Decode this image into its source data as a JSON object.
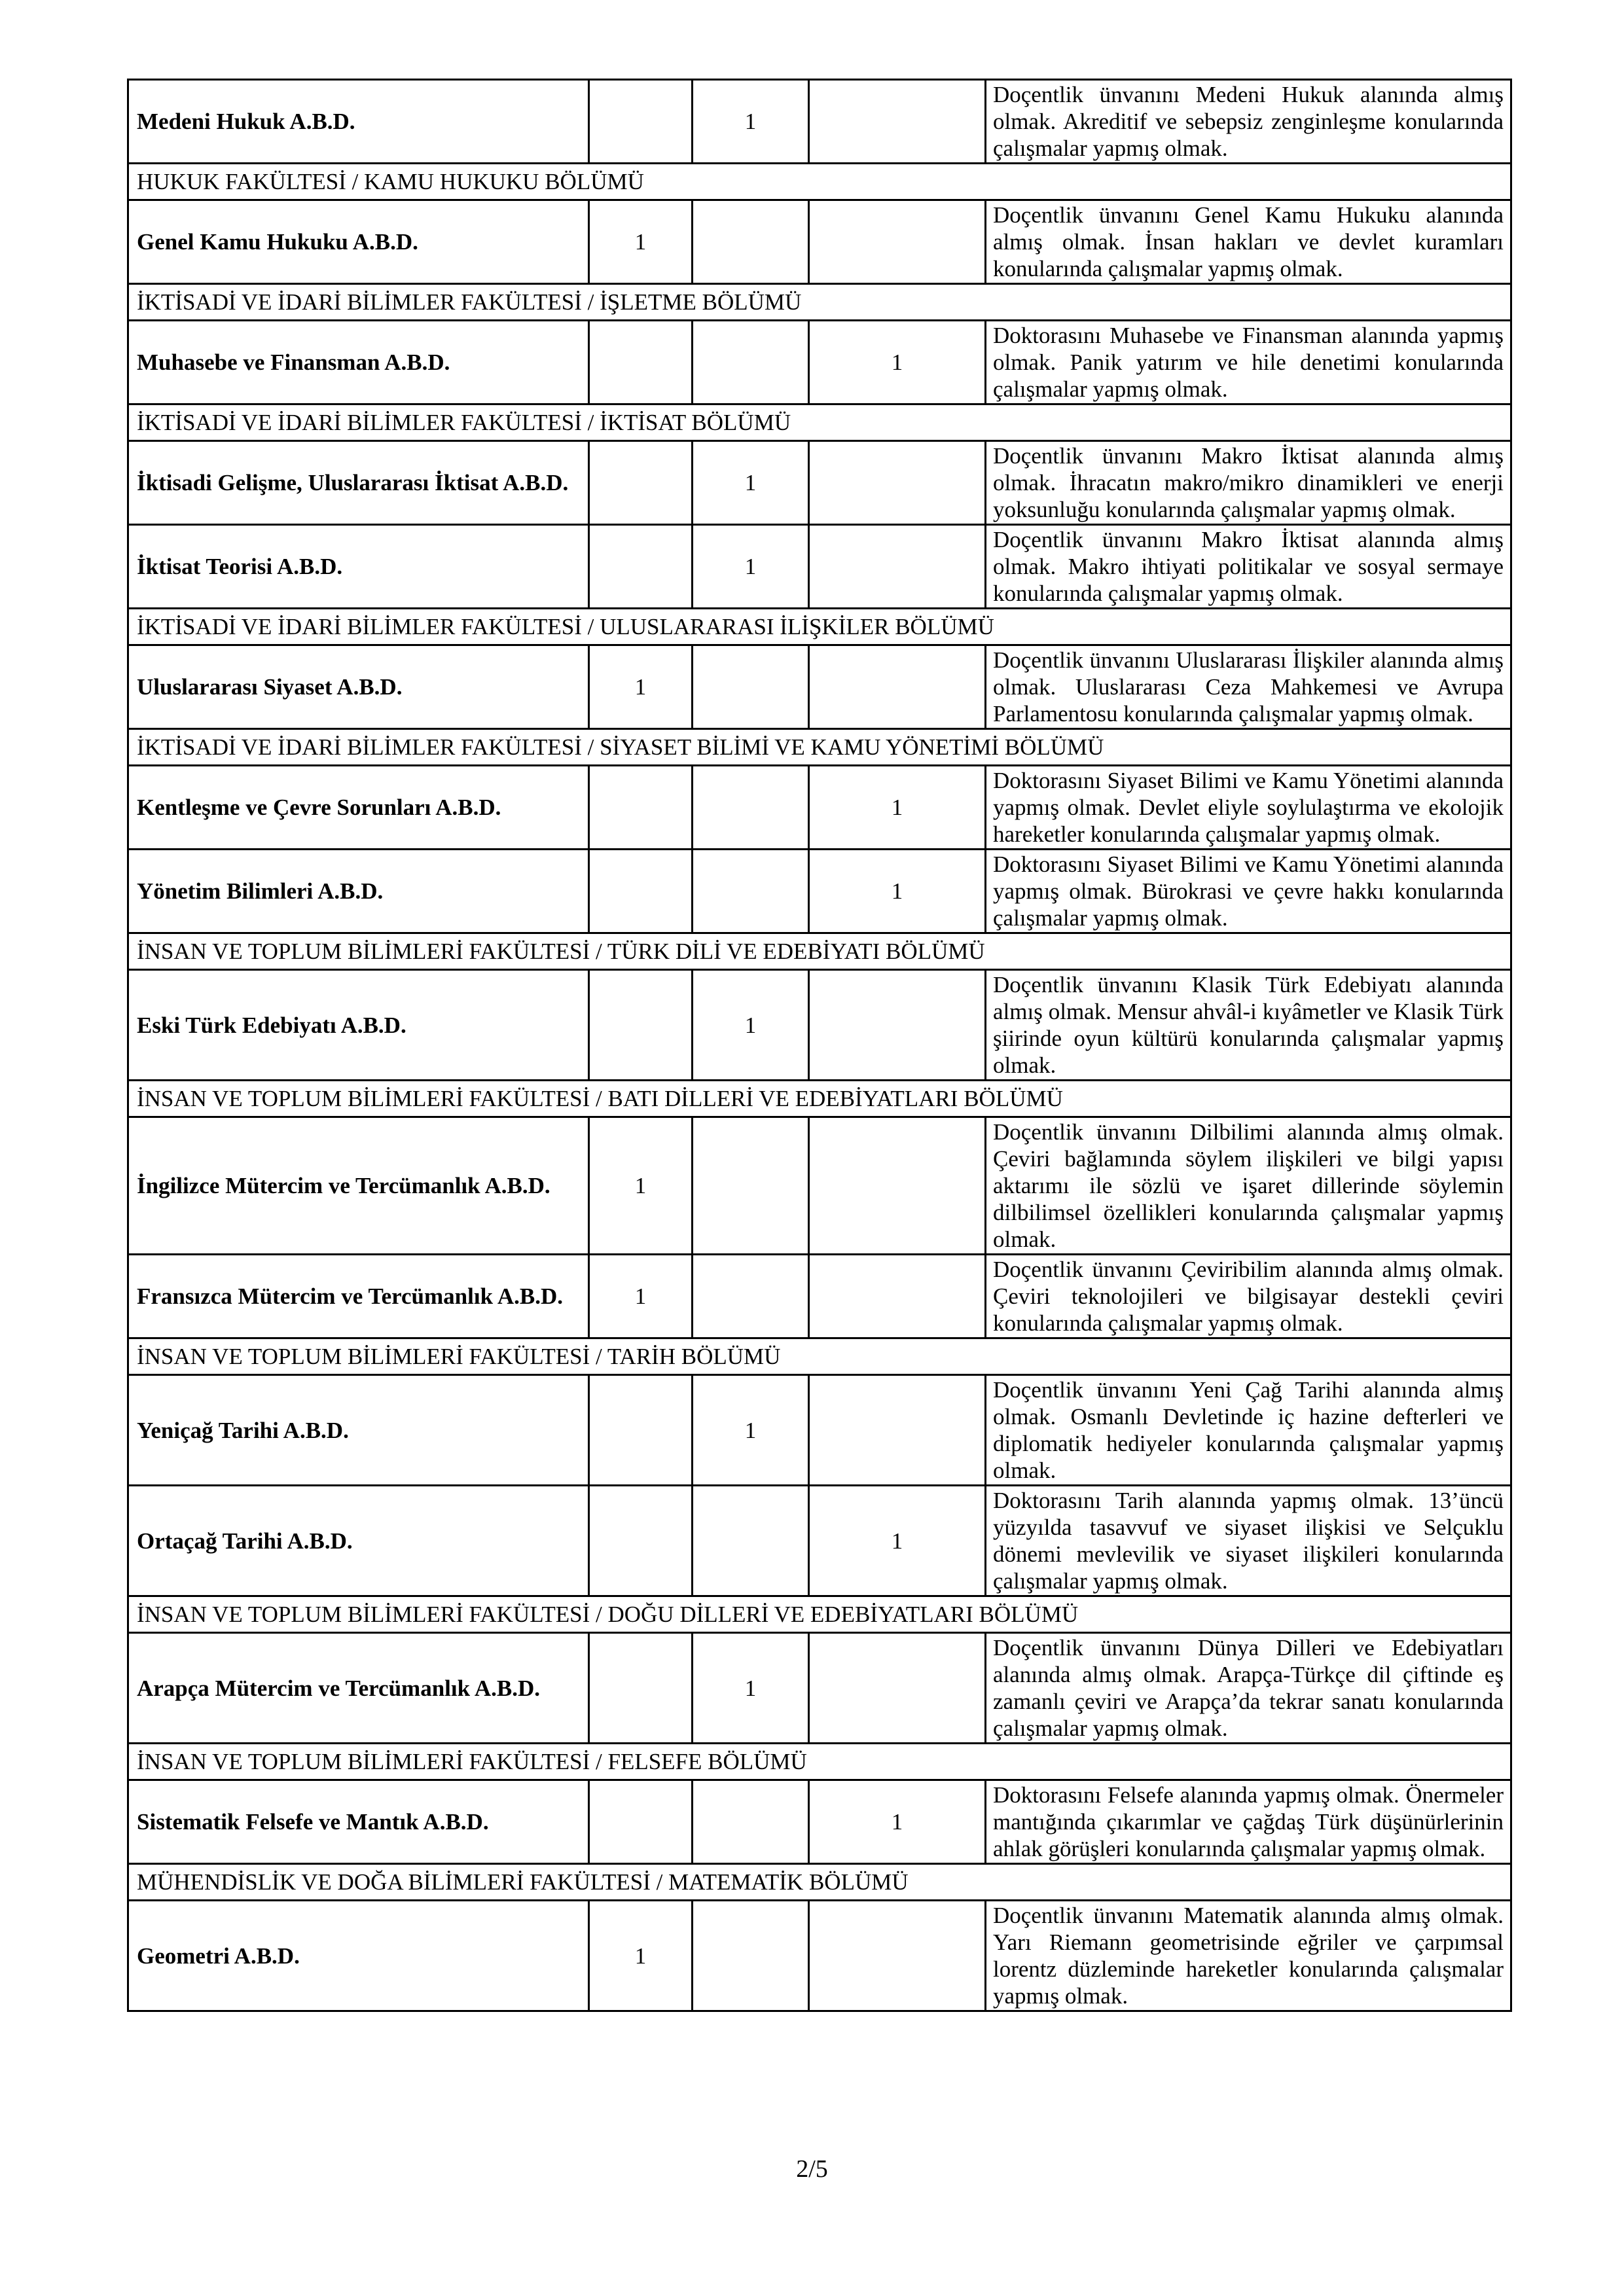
{
  "rows": [
    {
      "type": "data",
      "name": "Medeni Hukuk A.B.D.",
      "col": 2,
      "count": "1",
      "desc": "Doçentlik ünvanını Medeni Hukuk alanında almış olmak. Akreditif ve sebepsiz zenginleşme konularında çalışmalar yapmış olmak."
    },
    {
      "type": "section",
      "label": "HUKUK FAKÜLTESİ / KAMU HUKUKU BÖLÜMÜ"
    },
    {
      "type": "data",
      "name": "Genel Kamu Hukuku A.B.D.",
      "col": 1,
      "count": "1",
      "desc": "Doçentlik ünvanını Genel Kamu Hukuku alanında almış olmak. İnsan hakları ve devlet kuramları konularında çalışmalar yapmış olmak."
    },
    {
      "type": "section",
      "label": "İKTİSADİ VE İDARİ BİLİMLER FAKÜLTESİ / İŞLETME BÖLÜMÜ"
    },
    {
      "type": "data",
      "name": "Muhasebe ve Finansman A.B.D.",
      "col": 3,
      "count": "1",
      "desc": "Doktorasını Muhasebe ve Finansman alanında yapmış olmak. Panik yatırım ve hile denetimi konularında çalışmalar yapmış olmak."
    },
    {
      "type": "section",
      "label": "İKTİSADİ VE İDARİ BİLİMLER FAKÜLTESİ / İKTİSAT BÖLÜMÜ"
    },
    {
      "type": "data",
      "name": "İktisadi Gelişme, Uluslararası İktisat A.B.D.",
      "col": 2,
      "count": "1",
      "desc": "Doçentlik ünvanını Makro İktisat alanında almış olmak. İhracatın makro/mikro dinamikleri ve enerji yoksunluğu konularında çalışmalar yapmış olmak."
    },
    {
      "type": "data",
      "name": "İktisat Teorisi A.B.D.",
      "col": 2,
      "count": "1",
      "desc": "Doçentlik ünvanını Makro İktisat alanında almış olmak. Makro ihtiyati politikalar ve sosyal sermaye konularında çalışmalar yapmış olmak."
    },
    {
      "type": "section",
      "label": "İKTİSADİ VE İDARİ BİLİMLER FAKÜLTESİ / ULUSLARARASI İLİŞKİLER BÖLÜMÜ"
    },
    {
      "type": "data",
      "name": "Uluslararası Siyaset A.B.D.",
      "col": 1,
      "count": "1",
      "desc": "Doçentlik ünvanını Uluslararası İlişkiler alanında almış olmak. Uluslararası Ceza Mahkemesi ve Avrupa Parlamentosu konularında çalışmalar yapmış olmak."
    },
    {
      "type": "section",
      "label": "İKTİSADİ VE İDARİ BİLİMLER FAKÜLTESİ / SİYASET BİLİMİ VE KAMU YÖNETİMİ BÖLÜMÜ"
    },
    {
      "type": "data",
      "name": "Kentleşme ve Çevre Sorunları A.B.D.",
      "col": 3,
      "count": "1",
      "desc": "Doktorasını Siyaset Bilimi ve Kamu Yönetimi alanında yapmış olmak. Devlet eliyle soylulaştırma ve ekolojik hareketler konularında çalışmalar yapmış olmak."
    },
    {
      "type": "data",
      "name": "Yönetim Bilimleri A.B.D.",
      "col": 3,
      "count": "1",
      "desc": "Doktorasını Siyaset Bilimi ve Kamu Yönetimi alanında yapmış olmak. Bürokrasi ve çevre hakkı konularında çalışmalar yapmış olmak."
    },
    {
      "type": "section",
      "label": "İNSAN VE TOPLUM BİLİMLERİ FAKÜLTESİ / TÜRK DİLİ VE EDEBİYATI BÖLÜMÜ"
    },
    {
      "type": "data",
      "name": "Eski Türk Edebiyatı A.B.D.",
      "col": 2,
      "count": "1",
      "desc": "Doçentlik ünvanını Klasik Türk Edebiyatı alanında almış olmak. Mensur ahvâl-i kıyâmetler ve Klasik Türk şiirinde oyun kültürü konularında çalışmalar yapmış olmak."
    },
    {
      "type": "section",
      "label": "İNSAN VE TOPLUM BİLİMLERİ FAKÜLTESİ / BATI DİLLERİ VE EDEBİYATLARI BÖLÜMÜ"
    },
    {
      "type": "data",
      "name": "İngilizce Mütercim ve Tercümanlık A.B.D.",
      "col": 1,
      "count": "1",
      "desc": "Doçentlik ünvanını Dilbilimi alanında almış olmak. Çeviri bağlamında söylem ilişkileri ve bilgi yapısı aktarımı ile sözlü ve işaret dillerinde söylemin dilbilimsel özellikleri konularında çalışmalar yapmış olmak."
    },
    {
      "type": "data",
      "name": "Fransızca Mütercim ve Tercümanlık A.B.D.",
      "col": 1,
      "count": "1",
      "desc": "Doçentlik ünvanını Çeviribilim alanında almış olmak. Çeviri teknolojileri ve bilgisayar destekli çeviri konularında çalışmalar yapmış olmak."
    },
    {
      "type": "section",
      "label": "İNSAN VE TOPLUM BİLİMLERİ FAKÜLTESİ / TARİH BÖLÜMÜ"
    },
    {
      "type": "data",
      "name": "Yeniçağ Tarihi A.B.D.",
      "col": 2,
      "count": "1",
      "desc": "Doçentlik ünvanını Yeni Çağ Tarihi alanında almış olmak. Osmanlı Devletinde iç hazine defterleri ve diplomatik hediyeler konularında çalışmalar yapmış olmak."
    },
    {
      "type": "data",
      "name": "Ortaçağ Tarihi A.B.D.",
      "col": 3,
      "count": "1",
      "desc": "Doktorasını Tarih alanında yapmış olmak. 13’üncü yüzyılda tasavvuf ve siyaset ilişkisi ve Selçuklu dönemi mevlevilik ve siyaset ilişkileri konularında çalışmalar yapmış olmak."
    },
    {
      "type": "section",
      "label": "İNSAN VE TOPLUM BİLİMLERİ FAKÜLTESİ / DOĞU DİLLERİ VE EDEBİYATLARI BÖLÜMÜ"
    },
    {
      "type": "data",
      "name": "Arapça Mütercim ve Tercümanlık A.B.D.",
      "col": 2,
      "count": "1",
      "desc": "Doçentlik ünvanını Dünya Dilleri ve Edebiyatları alanında almış olmak. Arapça-Türkçe dil çiftinde eş zamanlı çeviri ve Arapça’da tekrar sanatı konularında çalışmalar yapmış olmak."
    },
    {
      "type": "section",
      "label": "İNSAN VE TOPLUM BİLİMLERİ FAKÜLTESİ / FELSEFE BÖLÜMÜ"
    },
    {
      "type": "data",
      "name": "Sistematik Felsefe ve Mantık A.B.D.",
      "col": 3,
      "count": "1",
      "desc": "Doktorasını Felsefe alanında yapmış olmak. Önermeler mantığında çıkarımlar ve çağdaş Türk düşünürlerinin ahlak görüşleri konularında çalışmalar yapmış olmak."
    },
    {
      "type": "section",
      "label": "MÜHENDİSLİK VE DOĞA BİLİMLERİ FAKÜLTESİ / MATEMATİK BÖLÜMÜ"
    },
    {
      "type": "data",
      "name": "Geometri A.B.D.",
      "col": 1,
      "count": "1",
      "desc": "Doçentlik ünvanını Matematik alanında almış olmak. Yarı Riemann geometrisinde eğriler ve çarpımsal lorentz düzleminde hareketler konularında çalışmalar yapmış olmak."
    }
  ],
  "page_number": "2/5"
}
